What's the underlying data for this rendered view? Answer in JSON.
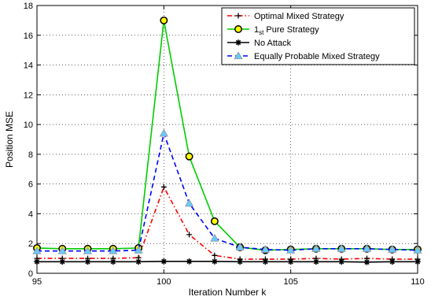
{
  "chart_data": {
    "type": "line",
    "xlabel": "Iteration Number k",
    "ylabel": "Position MSE",
    "xlim": [
      95,
      110
    ],
    "ylim": [
      0,
      18
    ],
    "xticks": [
      95,
      100,
      105,
      110
    ],
    "yticks": [
      0,
      2,
      4,
      6,
      8,
      10,
      12,
      14,
      16,
      18
    ],
    "grid": true,
    "legend_position": "top-right",
    "x": [
      95,
      96,
      97,
      98,
      99,
      100,
      101,
      102,
      103,
      104,
      105,
      106,
      107,
      108,
      109,
      110
    ],
    "series": [
      {
        "name": "Optimal Mixed Strategy",
        "color": "#ff0000",
        "line_style": "dash-dot",
        "marker": "plus",
        "values": [
          1.0,
          1.0,
          1.0,
          1.0,
          1.05,
          5.8,
          2.6,
          1.2,
          0.95,
          0.95,
          0.95,
          1.0,
          0.95,
          1.0,
          0.95,
          0.95
        ]
      },
      {
        "name_main": "1",
        "name_sub": "st",
        "name_rest": " Pure Strategy",
        "color": "#00cc00",
        "line_style": "solid",
        "marker": "circle",
        "marker_fill": "#ffff00",
        "values": [
          1.7,
          1.65,
          1.65,
          1.65,
          1.7,
          17.0,
          7.85,
          3.5,
          1.75,
          1.55,
          1.6,
          1.65,
          1.65,
          1.65,
          1.6,
          1.6
        ]
      },
      {
        "name": "No Attack",
        "color": "#000000",
        "line_style": "solid",
        "marker": "star",
        "values": [
          0.78,
          0.78,
          0.78,
          0.78,
          0.78,
          0.8,
          0.8,
          0.8,
          0.78,
          0.78,
          0.78,
          0.78,
          0.78,
          0.75,
          0.78,
          0.78
        ]
      },
      {
        "name": "Equally Probable Mixed Strategy",
        "color": "#0000ff",
        "line_style": "dashed",
        "marker": "triangle",
        "marker_fill": "#66ccff",
        "values": [
          1.5,
          1.5,
          1.5,
          1.5,
          1.55,
          9.4,
          4.7,
          2.35,
          1.75,
          1.6,
          1.55,
          1.65,
          1.65,
          1.65,
          1.6,
          1.55
        ]
      }
    ]
  }
}
